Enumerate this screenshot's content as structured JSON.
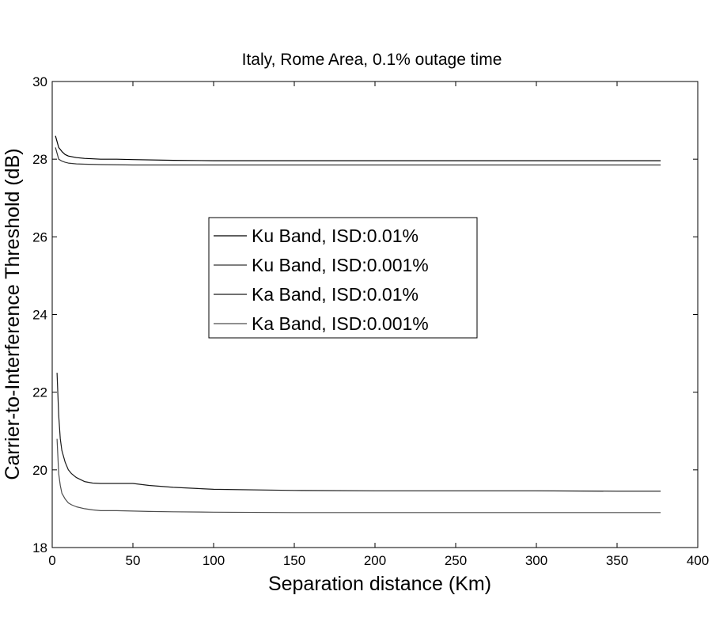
{
  "chart_data": {
    "type": "line",
    "title": "Italy, Rome Area, 0.1% outage time",
    "xlabel": "Separation distance (Km)",
    "ylabel": "Carrier-to-Interference Threshold (dB)",
    "xlim": [
      0,
      400
    ],
    "ylim": [
      18,
      30
    ],
    "xticks": [
      0,
      50,
      100,
      150,
      200,
      250,
      300,
      350,
      400
    ],
    "yticks": [
      18,
      20,
      22,
      24,
      26,
      28,
      30
    ],
    "xtick_labels": [
      "0",
      "50",
      "100",
      "150",
      "200",
      "250",
      "300",
      "350",
      "400"
    ],
    "ytick_labels": [
      "18",
      "20",
      "22",
      "24",
      "26",
      "28",
      "30"
    ],
    "grid": false,
    "legend_position": "center-left",
    "series": [
      {
        "name": "Ku Band, ISD:0.01%",
        "color": "#000000",
        "x": [
          2,
          4,
          6,
          8,
          10,
          15,
          20,
          30,
          40,
          50,
          75,
          100,
          150,
          200,
          250,
          300,
          350,
          377
        ],
        "y": [
          28.6,
          28.3,
          28.2,
          28.12,
          28.08,
          28.04,
          28.02,
          28.0,
          28.0,
          27.99,
          27.97,
          27.96,
          27.96,
          27.96,
          27.96,
          27.96,
          27.96,
          27.96
        ]
      },
      {
        "name": "Ku Band, ISD:0.001%",
        "color": "#333333",
        "x": [
          2,
          4,
          6,
          8,
          10,
          15,
          20,
          30,
          50,
          75,
          100,
          150,
          200,
          250,
          300,
          350,
          377
        ],
        "y": [
          28.3,
          28.0,
          27.95,
          27.92,
          27.9,
          27.88,
          27.87,
          27.86,
          27.85,
          27.85,
          27.85,
          27.85,
          27.85,
          27.85,
          27.85,
          27.85,
          27.85
        ]
      },
      {
        "name": "Ka Band, ISD:0.01%",
        "color": "#1a1a1a",
        "x": [
          3,
          4,
          5,
          6,
          8,
          10,
          12,
          15,
          20,
          25,
          30,
          40,
          50,
          60,
          75,
          90,
          100,
          150,
          200,
          250,
          300,
          350,
          377
        ],
        "y": [
          22.5,
          21.4,
          20.8,
          20.5,
          20.2,
          20.0,
          19.9,
          19.8,
          19.7,
          19.66,
          19.65,
          19.65,
          19.65,
          19.6,
          19.55,
          19.52,
          19.5,
          19.47,
          19.46,
          19.46,
          19.46,
          19.45,
          19.45
        ]
      },
      {
        "name": "Ka Band, ISD:0.001%",
        "color": "#4d4d4d",
        "x": [
          3,
          4,
          5,
          6,
          8,
          10,
          12,
          15,
          20,
          25,
          30,
          40,
          50,
          60,
          75,
          100,
          150,
          200,
          250,
          300,
          350,
          377
        ],
        "y": [
          20.8,
          19.9,
          19.6,
          19.4,
          19.25,
          19.15,
          19.1,
          19.05,
          19.0,
          18.97,
          18.95,
          18.95,
          18.94,
          18.93,
          18.92,
          18.91,
          18.9,
          18.9,
          18.9,
          18.9,
          18.9,
          18.9
        ]
      }
    ]
  }
}
